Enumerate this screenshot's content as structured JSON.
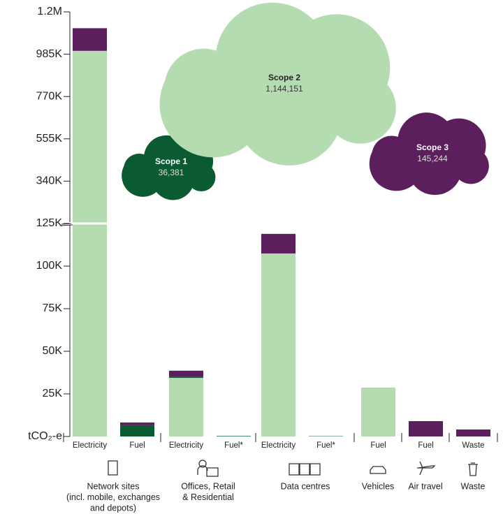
{
  "chart_data": {
    "type": "stacked-bar",
    "categories": [
      "Electricity",
      "Fuel",
      "Electricity",
      "Fuel*",
      "Electricity",
      "Fuel*",
      "Fuel",
      "Fuel",
      "Waste"
    ],
    "groups": [
      {
        "label": [
          "Network sites",
          "(incl. mobile, exchanges",
          "and depots)"
        ]
      },
      {
        "label": [
          "Offices, Retail",
          "& Residential"
        ]
      },
      {
        "label": [
          "Data centres"
        ]
      },
      {
        "label": [
          "Vehicles"
        ]
      },
      {
        "label": [
          "Air travel"
        ]
      },
      {
        "label": [
          "Waste"
        ]
      }
    ],
    "series": [
      {
        "name": "Scope 2",
        "color": "#b5dcb0",
        "values": [
          1002000,
          0,
          34400,
          0,
          107400,
          0,
          0,
          0,
          0
        ]
      },
      {
        "name": "Scope 1",
        "color": "#0a5a32",
        "colors": [
          "#0a5a32",
          "#0a5a32",
          "#0a5a32",
          "#0a5a32",
          "#0a5a32",
          "#0a5a32",
          "#b5dcb0",
          "#0a5a32",
          "#0a5a32"
        ],
        "values": [
          0,
          6600,
          500,
          300,
          0,
          200,
          28700,
          0,
          0
        ]
      },
      {
        "name": "Scope 3",
        "color": "#5b1f5e",
        "values": [
          115000,
          1600,
          3700,
          0,
          11500,
          0,
          0,
          9000,
          4100
        ]
      }
    ],
    "totals": [
      {
        "name": "Scope 1",
        "value": 36381,
        "value_label": "36,381",
        "color": "#0a5a32"
      },
      {
        "name": "Scope 2",
        "value": 1144151,
        "value_label": "1,144,151",
        "color": "#b5dcb0"
      },
      {
        "name": "Scope 3",
        "value": 145244,
        "value_label": "145,244",
        "color": "#5b1f5e"
      }
    ],
    "ylim": [
      0,
      1200000
    ],
    "axis_break": 125000,
    "yticks": [
      {
        "value": 0,
        "label": "tCO₂-e"
      },
      {
        "value": 25000,
        "label": "25K"
      },
      {
        "value": 50000,
        "label": "50K"
      },
      {
        "value": 75000,
        "label": "75K"
      },
      {
        "value": 100000,
        "label": "100K"
      },
      {
        "value": 125000,
        "label": "125K"
      },
      {
        "value": 340000,
        "label": "340K"
      },
      {
        "value": 555000,
        "label": "555K"
      },
      {
        "value": 770000,
        "label": "770K"
      },
      {
        "value": 985000,
        "label": "985K"
      },
      {
        "value": 1200000,
        "label": "1.2M"
      }
    ]
  }
}
